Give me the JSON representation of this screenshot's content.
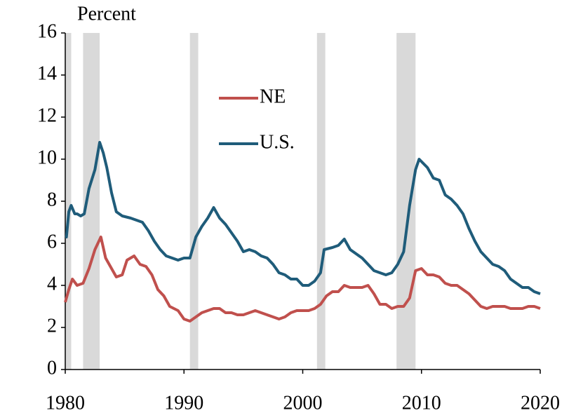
{
  "chart_data": {
    "type": "line",
    "ylabel": "Percent",
    "xlim": [
      1980,
      2020
    ],
    "xticks": [
      1980,
      1990,
      2000,
      2010,
      2020
    ],
    "ylim": [
      0,
      16
    ],
    "yticks": [
      0,
      2,
      4,
      6,
      8,
      10,
      12,
      14,
      16
    ],
    "grid": false,
    "legend_loc": "upper center",
    "recession_color": "#d9d9d9",
    "recessions": [
      [
        1980.0,
        1980.5
      ],
      [
        1981.5,
        1982.9
      ],
      [
        1990.5,
        1991.2
      ],
      [
        2001.2,
        2001.9
      ],
      [
        2007.9,
        2009.5
      ]
    ],
    "series": [
      {
        "name": "NE",
        "color": "#c0504d",
        "x": [
          1980.0,
          1980.3,
          1980.6,
          1981.0,
          1981.5,
          1982.0,
          1982.5,
          1983.0,
          1983.4,
          1983.8,
          1984.3,
          1984.8,
          1985.2,
          1985.8,
          1986.3,
          1986.8,
          1987.3,
          1987.8,
          1988.3,
          1988.8,
          1989.5,
          1990.0,
          1990.5,
          1991.0,
          1991.5,
          1992.0,
          1992.5,
          1993.0,
          1993.5,
          1994.0,
          1994.5,
          1995.0,
          1995.5,
          1996.0,
          1996.5,
          1997.0,
          1997.5,
          1998.0,
          1998.5,
          1999.0,
          1999.5,
          2000.0,
          2000.5,
          2001.0,
          2001.5,
          2002.0,
          2002.5,
          2003.0,
          2003.5,
          2004.0,
          2004.5,
          2005.0,
          2005.5,
          2006.0,
          2006.5,
          2007.0,
          2007.5,
          2008.0,
          2008.5,
          2009.0,
          2009.5,
          2010.0,
          2010.5,
          2011.0,
          2011.5,
          2012.0,
          2012.5,
          2013.0,
          2013.5,
          2014.0,
          2014.5,
          2015.0,
          2015.5,
          2016.0,
          2016.5,
          2017.0,
          2017.5,
          2018.0,
          2018.5,
          2019.0,
          2019.5,
          2020.0
        ],
        "values": [
          3.2,
          3.8,
          4.3,
          4.0,
          4.1,
          4.8,
          5.7,
          6.3,
          5.3,
          4.9,
          4.4,
          4.5,
          5.2,
          5.4,
          5.0,
          4.9,
          4.5,
          3.8,
          3.5,
          3.0,
          2.8,
          2.4,
          2.3,
          2.5,
          2.7,
          2.8,
          2.9,
          2.9,
          2.7,
          2.7,
          2.6,
          2.6,
          2.7,
          2.8,
          2.7,
          2.6,
          2.5,
          2.4,
          2.5,
          2.7,
          2.8,
          2.8,
          2.8,
          2.9,
          3.1,
          3.5,
          3.7,
          3.7,
          4.0,
          3.9,
          3.9,
          3.9,
          4.0,
          3.6,
          3.1,
          3.1,
          2.9,
          3.0,
          3.0,
          3.4,
          4.7,
          4.8,
          4.5,
          4.5,
          4.4,
          4.1,
          4.0,
          4.0,
          3.8,
          3.6,
          3.3,
          3.0,
          2.9,
          3.0,
          3.0,
          3.0,
          2.9,
          2.9,
          2.9,
          3.0,
          3.0,
          2.9
        ]
      },
      {
        "name": "U.S.",
        "color": "#1f5c7a",
        "x": [
          1980.0,
          1980.1,
          1980.3,
          1980.5,
          1980.8,
          1981.0,
          1981.3,
          1981.6,
          1981.8,
          1982.0,
          1982.5,
          1982.9,
          1983.2,
          1983.5,
          1983.9,
          1984.3,
          1984.8,
          1985.5,
          1986.0,
          1986.5,
          1987.0,
          1987.5,
          1988.0,
          1988.5,
          1989.0,
          1989.5,
          1990.0,
          1990.5,
          1991.0,
          1991.5,
          1992.0,
          1992.5,
          1993.0,
          1993.5,
          1994.0,
          1994.5,
          1995.0,
          1995.5,
          1996.0,
          1996.5,
          1997.0,
          1997.5,
          1998.0,
          1998.5,
          1999.0,
          1999.5,
          2000.0,
          2000.5,
          2001.0,
          2001.5,
          2001.8,
          2002.5,
          2003.0,
          2003.5,
          2004.0,
          2004.5,
          2005.0,
          2005.5,
          2006.0,
          2006.5,
          2007.0,
          2007.5,
          2008.0,
          2008.5,
          2009.0,
          2009.5,
          2009.8,
          2010.5,
          2011.0,
          2011.5,
          2012.0,
          2012.5,
          2013.0,
          2013.5,
          2014.0,
          2014.5,
          2015.0,
          2015.5,
          2016.0,
          2016.5,
          2017.0,
          2017.5,
          2018.0,
          2018.5,
          2019.0,
          2019.5,
          2020.0
        ],
        "values": [
          6.3,
          6.3,
          7.5,
          7.8,
          7.4,
          7.4,
          7.3,
          7.4,
          8.0,
          8.6,
          9.5,
          10.8,
          10.3,
          9.6,
          8.4,
          7.5,
          7.3,
          7.2,
          7.1,
          7.0,
          6.6,
          6.1,
          5.7,
          5.4,
          5.3,
          5.2,
          5.3,
          5.3,
          6.3,
          6.8,
          7.2,
          7.7,
          7.2,
          6.9,
          6.5,
          6.1,
          5.6,
          5.7,
          5.6,
          5.4,
          5.3,
          5.0,
          4.6,
          4.5,
          4.3,
          4.3,
          4.0,
          4.0,
          4.2,
          4.6,
          5.7,
          5.8,
          5.9,
          6.2,
          5.7,
          5.5,
          5.3,
          5.0,
          4.7,
          4.6,
          4.5,
          4.6,
          5.0,
          5.6,
          7.8,
          9.5,
          10.0,
          9.6,
          9.1,
          9.0,
          8.3,
          8.1,
          7.8,
          7.4,
          6.7,
          6.1,
          5.6,
          5.3,
          5.0,
          4.9,
          4.7,
          4.3,
          4.1,
          3.9,
          3.9,
          3.7,
          3.6
        ]
      }
    ]
  }
}
